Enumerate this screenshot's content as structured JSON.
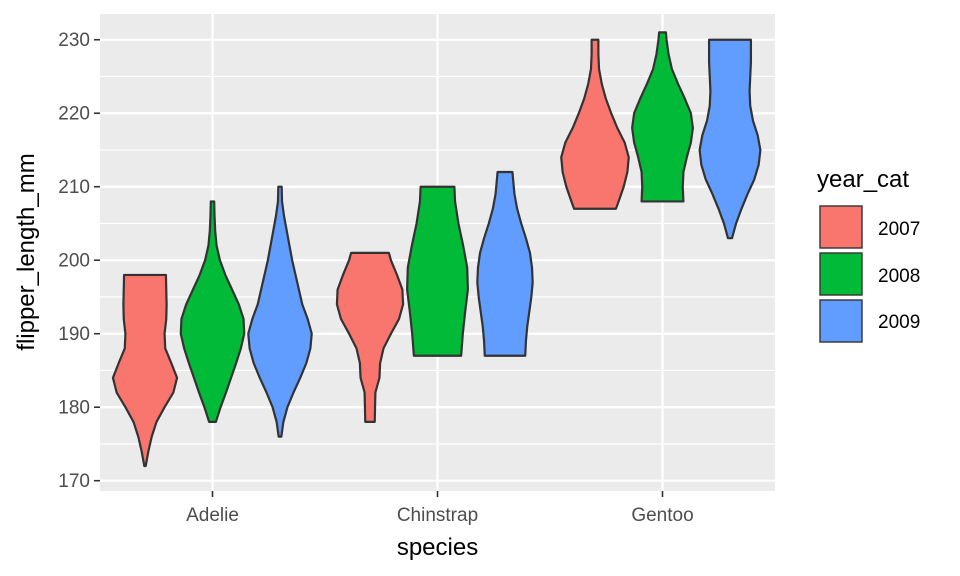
{
  "chart_data": {
    "type": "violin",
    "xlabel": "species",
    "ylabel": "flipper_length_mm",
    "ylim": [
      168.6,
      233.5
    ],
    "yticks": [
      170,
      180,
      190,
      200,
      210,
      220,
      230
    ],
    "ytick_labels": [
      "170",
      "180",
      "190",
      "200",
      "210",
      "220",
      "230"
    ],
    "categories": [
      "Adelie",
      "Chinstrap",
      "Gentoo"
    ],
    "legend": {
      "title": "year_cat",
      "position": "right",
      "entries": [
        "2007",
        "2008",
        "2009"
      ]
    },
    "grid": true,
    "series": [
      {
        "name": "2007",
        "color": "#F8766D",
        "violins": [
          {
            "category": "Adelie",
            "min": 172,
            "max": 198,
            "density": [
              [
                172,
                0.02
              ],
              [
                174,
                0.1
              ],
              [
                176,
                0.2
              ],
              [
                178,
                0.34
              ],
              [
                180,
                0.58
              ],
              [
                182,
                0.84
              ],
              [
                184,
                0.95
              ],
              [
                186,
                0.78
              ],
              [
                188,
                0.6
              ],
              [
                190,
                0.58
              ],
              [
                192,
                0.63
              ],
              [
                194,
                0.64
              ],
              [
                196,
                0.63
              ],
              [
                198,
                0.62
              ]
            ]
          },
          {
            "category": "Chinstrap",
            "min": 178,
            "max": 201,
            "density": [
              [
                178,
                0.14
              ],
              [
                180,
                0.15
              ],
              [
                182,
                0.16
              ],
              [
                184,
                0.28
              ],
              [
                186,
                0.3
              ],
              [
                188,
                0.4
              ],
              [
                190,
                0.62
              ],
              [
                192,
                0.86
              ],
              [
                194,
                0.98
              ],
              [
                196,
                0.96
              ],
              [
                198,
                0.8
              ],
              [
                200,
                0.62
              ],
              [
                201,
                0.56
              ]
            ]
          },
          {
            "category": "Gentoo",
            "min": 207,
            "max": 230,
            "density": [
              [
                207,
                0.62
              ],
              [
                208,
                0.7
              ],
              [
                210,
                0.85
              ],
              [
                212,
                0.96
              ],
              [
                214,
                1.0
              ],
              [
                216,
                0.88
              ],
              [
                218,
                0.66
              ],
              [
                220,
                0.48
              ],
              [
                222,
                0.32
              ],
              [
                224,
                0.2
              ],
              [
                226,
                0.12
              ],
              [
                228,
                0.1
              ],
              [
                230,
                0.1
              ]
            ]
          }
        ]
      },
      {
        "name": "2008",
        "color": "#00BA38",
        "violins": [
          {
            "category": "Adelie",
            "min": 178,
            "max": 208,
            "density": [
              [
                178,
                0.1
              ],
              [
                180,
                0.24
              ],
              [
                182,
                0.4
              ],
              [
                184,
                0.55
              ],
              [
                186,
                0.7
              ],
              [
                188,
                0.84
              ],
              [
                190,
                0.94
              ],
              [
                192,
                0.92
              ],
              [
                194,
                0.78
              ],
              [
                196,
                0.58
              ],
              [
                198,
                0.38
              ],
              [
                200,
                0.22
              ],
              [
                202,
                0.12
              ],
              [
                204,
                0.08
              ],
              [
                206,
                0.06
              ],
              [
                208,
                0.05
              ]
            ]
          },
          {
            "category": "Chinstrap",
            "min": 187,
            "max": 210,
            "density": [
              [
                187,
                0.7
              ],
              [
                190,
                0.75
              ],
              [
                193,
                0.82
              ],
              [
                196,
                0.9
              ],
              [
                199,
                0.88
              ],
              [
                202,
                0.76
              ],
              [
                205,
                0.62
              ],
              [
                208,
                0.52
              ],
              [
                210,
                0.5
              ]
            ]
          },
          {
            "category": "Gentoo",
            "min": 208,
            "max": 231,
            "density": [
              [
                208,
                0.62
              ],
              [
                210,
                0.6
              ],
              [
                212,
                0.62
              ],
              [
                214,
                0.72
              ],
              [
                216,
                0.84
              ],
              [
                218,
                0.9
              ],
              [
                220,
                0.84
              ],
              [
                222,
                0.66
              ],
              [
                224,
                0.46
              ],
              [
                226,
                0.28
              ],
              [
                228,
                0.18
              ],
              [
                230,
                0.12
              ],
              [
                231,
                0.1
              ]
            ]
          }
        ]
      },
      {
        "name": "2009",
        "color": "#619CFF",
        "violins": [
          {
            "category": "Adelie",
            "min": 176,
            "max": 210,
            "density": [
              [
                176,
                0.04
              ],
              [
                178,
                0.1
              ],
              [
                180,
                0.22
              ],
              [
                182,
                0.4
              ],
              [
                184,
                0.6
              ],
              [
                186,
                0.78
              ],
              [
                188,
                0.9
              ],
              [
                190,
                0.94
              ],
              [
                192,
                0.82
              ],
              [
                194,
                0.66
              ],
              [
                196,
                0.56
              ],
              [
                198,
                0.46
              ],
              [
                200,
                0.36
              ],
              [
                202,
                0.28
              ],
              [
                204,
                0.2
              ],
              [
                206,
                0.12
              ],
              [
                208,
                0.06
              ],
              [
                210,
                0.05
              ]
            ]
          },
          {
            "category": "Chinstrap",
            "min": 187,
            "max": 212,
            "density": [
              [
                187,
                0.6
              ],
              [
                189,
                0.62
              ],
              [
                191,
                0.66
              ],
              [
                193,
                0.72
              ],
              [
                195,
                0.78
              ],
              [
                197,
                0.82
              ],
              [
                199,
                0.8
              ],
              [
                201,
                0.74
              ],
              [
                203,
                0.62
              ],
              [
                205,
                0.48
              ],
              [
                207,
                0.36
              ],
              [
                209,
                0.28
              ],
              [
                211,
                0.24
              ],
              [
                212,
                0.22
              ]
            ]
          },
          {
            "category": "Gentoo",
            "min": 203,
            "max": 230,
            "density": [
              [
                203,
                0.06
              ],
              [
                205,
                0.18
              ],
              [
                207,
                0.34
              ],
              [
                209,
                0.52
              ],
              [
                211,
                0.72
              ],
              [
                213,
                0.85
              ],
              [
                215,
                0.9
              ],
              [
                217,
                0.82
              ],
              [
                219,
                0.68
              ],
              [
                221,
                0.6
              ],
              [
                223,
                0.58
              ],
              [
                225,
                0.6
              ],
              [
                227,
                0.62
              ],
              [
                229,
                0.62
              ],
              [
                230,
                0.62
              ]
            ]
          }
        ]
      }
    ]
  }
}
